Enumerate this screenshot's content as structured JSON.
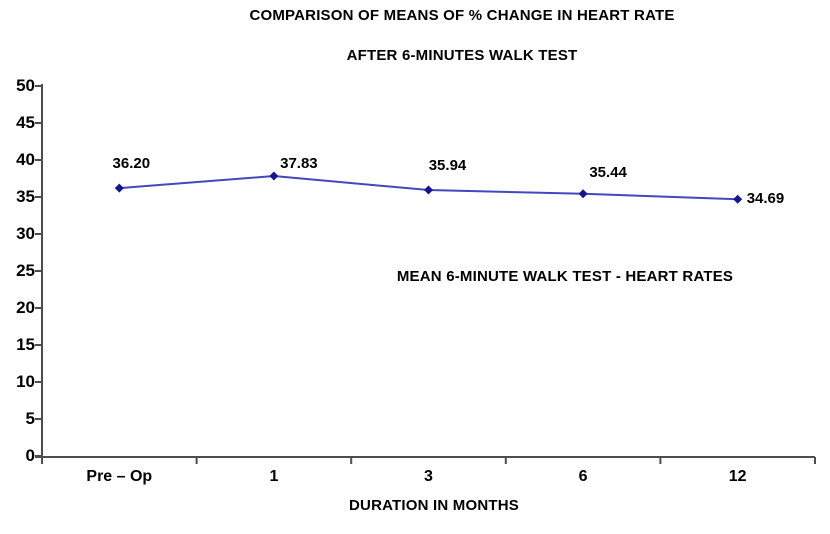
{
  "chart_data": {
    "type": "line",
    "title": "COMPARISON OF MEANS OF % CHANGE IN HEART RATE",
    "subtitle": "AFTER 6-MINUTES WALK TEST",
    "categories": [
      "Pre – Op",
      "1",
      "3",
      "6",
      "12"
    ],
    "values": [
      36.2,
      37.83,
      35.94,
      35.44,
      34.69
    ],
    "point_labels": [
      "36.20",
      "37.83",
      "35.94",
      "35.44",
      "34.69"
    ],
    "xlabel": "DURATION IN MONTHS",
    "ylabel": "",
    "ylim": [
      0,
      50
    ],
    "ytick_step": 5,
    "yticks": [
      0,
      5,
      10,
      15,
      20,
      25,
      30,
      35,
      40,
      45,
      50
    ],
    "annotation": "MEAN 6-MINUTE WALK TEST - HEART RATES",
    "grid": "off",
    "legend": "none",
    "colors": {
      "line": "#4646be",
      "marker": "#16168c",
      "axis": "#4d4d4d",
      "text": "#000000",
      "background": "#ffffff"
    }
  }
}
